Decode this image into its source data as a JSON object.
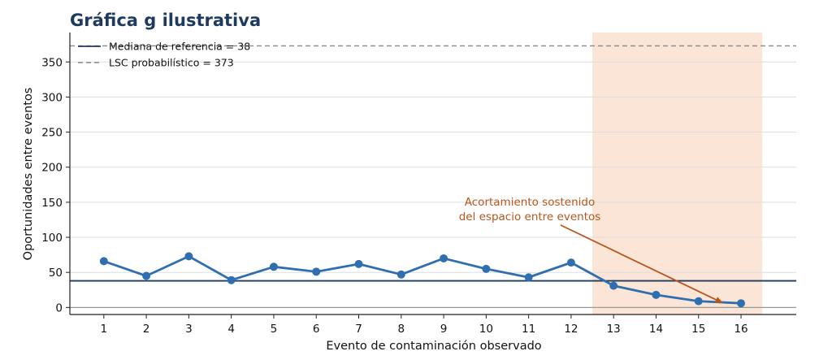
{
  "chart_data": {
    "type": "line",
    "title": "Gráfica g ilustrativa",
    "xlabel": "Evento de contaminación observado",
    "ylabel": "Oportunidades entre eventos",
    "x": [
      1,
      2,
      3,
      4,
      5,
      6,
      7,
      8,
      9,
      10,
      11,
      12,
      13,
      14,
      15,
      16
    ],
    "xticks": [
      "1",
      "2",
      "3",
      "4",
      "5",
      "6",
      "7",
      "8",
      "9",
      "10",
      "11",
      "12",
      "13",
      "14",
      "15",
      "16"
    ],
    "xlim": [
      0.2,
      17.3
    ],
    "ylim": [
      -10,
      392
    ],
    "yticks": [
      "0",
      "50",
      "100",
      "150",
      "200",
      "250",
      "300",
      "350"
    ],
    "grid": "horizontal",
    "series": [
      {
        "values": [
          66,
          45,
          73,
          39,
          58,
          51,
          62,
          47,
          70,
          55,
          43,
          64,
          31,
          18,
          9,
          6
        ],
        "color": "#2f6fb0"
      }
    ],
    "reference_lines": [
      {
        "label": "Mediana de referencia = 38",
        "value": 38,
        "color": "#1f3a5f",
        "style": "solid"
      },
      {
        "label": "LSC probabilístico = 373",
        "value": 373,
        "color": "#888888",
        "style": "dashed"
      }
    ],
    "highlight_region": {
      "x_from": 12.5,
      "x_to": 16.5,
      "color": "#fbe5d6"
    },
    "annotation": {
      "lines": [
        "Acortamiento sostenido",
        "del espacio entre eventos"
      ],
      "color": "#b7561c",
      "arrow_target": {
        "x": 15.55,
        "y": 7
      }
    },
    "legend": {
      "placement": "top-left"
    }
  }
}
